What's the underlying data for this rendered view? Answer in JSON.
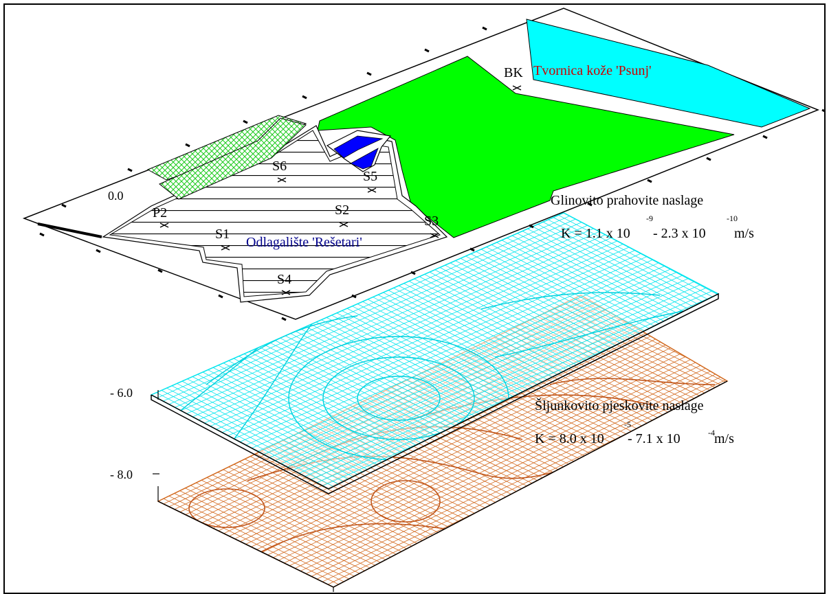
{
  "colors": {
    "leather_factory": "#00ffff",
    "green_zone": "#00ff00",
    "pond": "#0000ff",
    "clay_grid": "#00e5ee",
    "gravel_grid": "#d2691e",
    "landfill_label": "#00008b",
    "factory_label": "#cc0000",
    "text": "#000000"
  },
  "surface": {
    "elevation_label": "0.0",
    "landfill_label": "Odlagalište 'Rešetari'",
    "factory_label": "Tvornica kože 'Psunj'",
    "wells": [
      "BK",
      "S6",
      "S5",
      "P2",
      "S2",
      "S3",
      "S1",
      "S4"
    ]
  },
  "clay_layer": {
    "elevation_label": "- 6.0",
    "title": "Glinovito prahovite naslage",
    "k_prefix": "K = 1.1 x 10",
    "k_exp1": "-9",
    "k_mid": " - 2.3 x 10",
    "k_exp2": "-10",
    "k_unit": " m/s"
  },
  "gravel_layer": {
    "elevation_label": "- 8.0",
    "title": "Šljunkovito pjeskovite naslage",
    "k_prefix": "K = 8.0 x 10",
    "k_exp1": "-5",
    "k_mid": " - 7.1 x 10",
    "k_exp2": "-4",
    "k_unit": " m/s"
  }
}
